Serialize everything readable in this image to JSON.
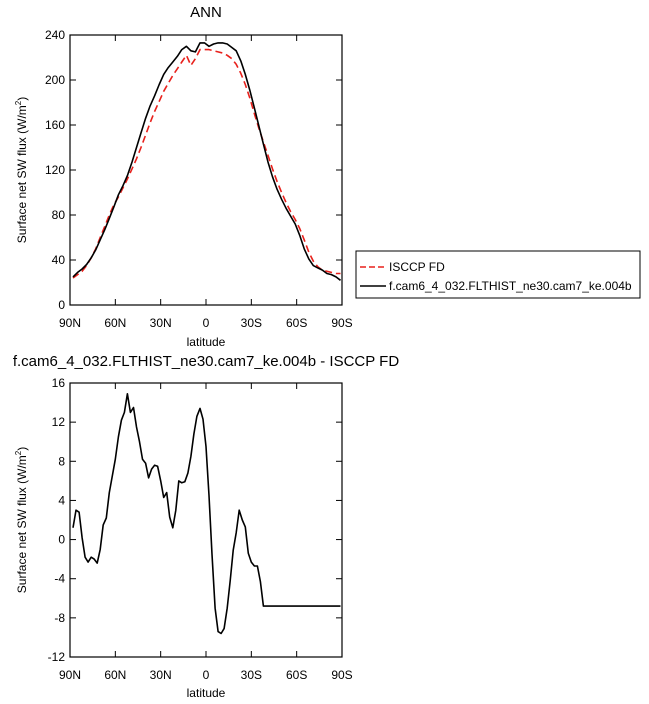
{
  "chart_data": [
    {
      "type": "line",
      "title": "ANN",
      "xlabel": "latitude",
      "ylabel_main": "Surface net SW flux (W/m",
      "ylabel_sup": "2",
      "ylabel_close": ")",
      "xlim": [
        -90,
        90
      ],
      "ylim": [
        0,
        240
      ],
      "xticks": [
        -90,
        -60,
        -30,
        0,
        30,
        60,
        90
      ],
      "xtick_labels": [
        "90N",
        "60N",
        "30N",
        "0",
        "30S",
        "60S",
        "90S"
      ],
      "yticks": [
        0,
        40,
        80,
        120,
        160,
        200,
        240
      ],
      "ytick_labels": [
        "0",
        "40",
        "80",
        "120",
        "160",
        "200",
        "240"
      ],
      "legend": {
        "position": "right",
        "entries": [
          "ISCCP FD",
          "f.cam6_4_032.FLTHIST_ne30.cam7_ke.004b"
        ]
      },
      "series": [
        {
          "name": "ISCCP FD",
          "color": "#e8211c",
          "dash": true,
          "x": [
            -88,
            -85,
            -82,
            -79,
            -76,
            -73,
            -70,
            -67,
            -64,
            -61,
            -58,
            -55,
            -52,
            -49,
            -46,
            -43,
            -40,
            -37,
            -34,
            -31,
            -28,
            -25,
            -22,
            -19,
            -16,
            -13,
            -10,
            -7,
            -4,
            -1,
            2,
            5,
            8,
            11,
            14,
            17,
            20,
            23,
            26,
            29,
            32,
            35,
            38,
            41,
            44,
            47,
            50,
            53,
            56,
            59,
            62,
            65,
            68,
            71,
            74,
            77,
            80,
            83,
            86,
            89
          ],
          "y": [
            24,
            27,
            30,
            35,
            42,
            50,
            60,
            70,
            80,
            89,
            96,
            104,
            112,
            121,
            130,
            140,
            151,
            162,
            172,
            181,
            190,
            197,
            204,
            210,
            216,
            222,
            213,
            219,
            227,
            227,
            227,
            226,
            225,
            224,
            222,
            219,
            214,
            206,
            196,
            184,
            170,
            157,
            145,
            133,
            121,
            110,
            100,
            91,
            83,
            76,
            68,
            58,
            47,
            39,
            34,
            31,
            30,
            29,
            28,
            28
          ]
        },
        {
          "name": "f.cam6_4_032.FLTHIST_ne30.cam7_ke.004b",
          "color": "#000000",
          "dash": false,
          "x": [
            -88,
            -85,
            -82,
            -79,
            -76,
            -73,
            -70,
            -67,
            -64,
            -61,
            -58,
            -55,
            -52,
            -49,
            -46,
            -43,
            -40,
            -37,
            -34,
            -31,
            -28,
            -25,
            -22,
            -19,
            -16,
            -13,
            -10,
            -7,
            -4,
            -1,
            2,
            5,
            8,
            11,
            14,
            17,
            20,
            23,
            26,
            29,
            32,
            35,
            38,
            41,
            44,
            47,
            50,
            53,
            56,
            59,
            62,
            65,
            68,
            71,
            74,
            77,
            80,
            83,
            86,
            89
          ],
          "y": [
            25,
            29,
            32,
            36,
            42,
            49,
            58,
            67,
            77,
            87,
            98,
            106,
            115,
            127,
            140,
            153,
            166,
            177,
            186,
            196,
            205,
            211,
            216,
            221,
            227,
            230,
            226,
            225,
            233,
            233,
            230,
            232,
            233,
            233,
            232,
            229,
            226,
            217,
            205,
            191,
            175,
            159,
            143,
            127,
            114,
            103,
            94,
            86,
            79,
            72,
            62,
            50,
            41,
            35,
            33,
            31,
            28,
            27,
            25,
            22
          ]
        }
      ]
    },
    {
      "type": "line",
      "title": "f.cam6_4_032.FLTHIST_ne30.cam7_ke.004b - ISCCP FD",
      "xlabel": "latitude",
      "ylabel_main": "Surface net SW flux (W/m",
      "ylabel_sup": "2",
      "ylabel_close": ")",
      "xlim": [
        -90,
        90
      ],
      "ylim": [
        -12,
        16
      ],
      "xticks": [
        -90,
        -60,
        -30,
        0,
        30,
        60,
        90
      ],
      "xtick_labels": [
        "90N",
        "60N",
        "30N",
        "0",
        "30S",
        "60S",
        "90S"
      ],
      "yticks": [
        -12,
        -8,
        -4,
        0,
        4,
        8,
        12,
        16
      ],
      "ytick_labels": [
        "-12",
        "-8",
        "-4",
        "0",
        "4",
        "8",
        "12",
        "16"
      ],
      "series": [
        {
          "color": "#000000",
          "dash": false,
          "x": [
            -88,
            -86,
            -84,
            -82,
            -80,
            -78,
            -76,
            -74,
            -72,
            -70,
            -68,
            -66,
            -64,
            -62,
            -60,
            -58,
            -56,
            -54,
            -52,
            -50,
            -48,
            -46,
            -44,
            -42,
            -40,
            -38,
            -36,
            -34,
            -32,
            -30,
            -28,
            -26,
            -24,
            -22,
            -20,
            -18,
            -16,
            -14,
            -12,
            -10,
            -8,
            -6,
            -4,
            -2,
            0,
            2,
            4,
            6,
            8,
            10,
            12,
            14,
            16,
            18,
            20,
            22,
            24,
            26,
            28,
            30,
            32,
            34,
            36,
            38,
            40,
            42,
            44,
            46,
            48,
            50,
            52,
            54,
            56,
            58,
            60,
            62,
            64,
            66,
            68,
            70,
            72,
            74,
            76,
            78,
            80,
            82,
            84,
            86,
            88,
            89
          ],
          "y": [
            1.2,
            3.0,
            2.8,
            0.2,
            -1.8,
            -2.3,
            -1.8,
            -2.0,
            -2.4,
            -1.0,
            1.5,
            2.2,
            4.8,
            6.5,
            8.2,
            10.5,
            12.2,
            13.0,
            14.9,
            13.0,
            13.5,
            11.5,
            10.0,
            8.2,
            7.8,
            6.3,
            7.2,
            7.6,
            7.5,
            6.0,
            4.3,
            4.8,
            2.3,
            1.2,
            3.0,
            6.0,
            5.8,
            5.9,
            6.8,
            8.5,
            10.8,
            12.6,
            13.4,
            12.3,
            9.5,
            4.5,
            -1.5,
            -7.0,
            -9.4,
            -9.6,
            -9.1,
            -7.0,
            -4.2,
            -1.1,
            0.7,
            3.0,
            2.0,
            1.3,
            -1.4,
            -2.3,
            -2.7,
            -2.7,
            -4.3,
            -6.8,
            -6.8,
            -6.8,
            -6.8,
            -6.8,
            -6.8,
            -6.8,
            -6.8,
            -6.8,
            -6.8,
            -6.8,
            -6.8,
            -6.8,
            -6.8,
            -6.8,
            -6.8,
            -6.8,
            -6.8,
            -6.8,
            -6.8,
            -6.8,
            -6.8,
            -6.8,
            -6.8,
            -6.8,
            -6.8,
            -6.8
          ]
        }
      ]
    }
  ]
}
